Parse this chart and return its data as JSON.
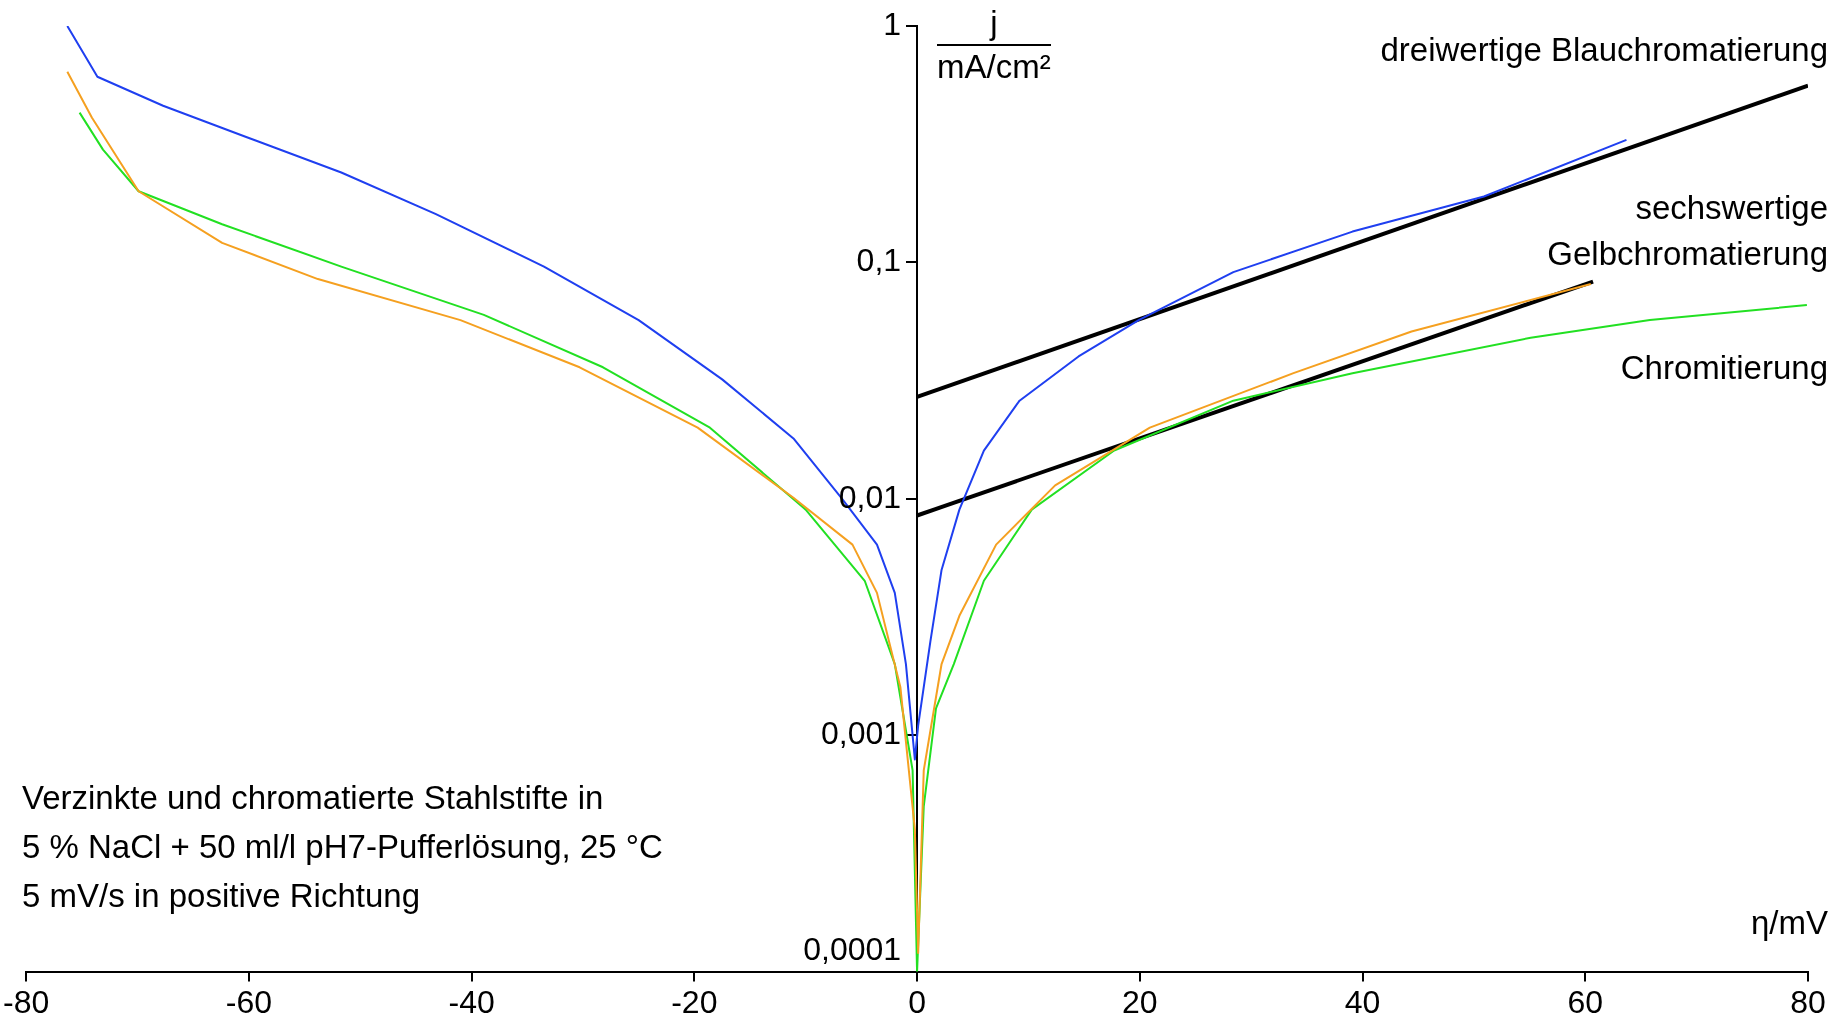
{
  "chart_data": {
    "type": "line",
    "xlabel": "η/mV",
    "ylabel": "j\nmA/cm²",
    "annotations": [
      "Verzinkte und chromatierte Stahlstifte in",
      "5 % NaCl + 50 ml/l pH7-Pufferlösung, 25 °C",
      "5 mV/s in positive Richtung"
    ],
    "series": [
      {
        "name": "dreiwertige Blauchromatierung",
        "color": "#1f3ff0",
        "x": [
          -76.3,
          -73.6,
          -67.7,
          -60.3,
          -51.7,
          -43.2,
          -33.5,
          -25,
          -17.5,
          -11.1,
          -6.8,
          -3.6,
          -2.0,
          -1.0,
          -0.2,
          0.1,
          1.2,
          2.2,
          3.8,
          6.0,
          9.2,
          14.5,
          19.9,
          28.4,
          39.1,
          50.9,
          63.7
        ],
        "values": [
          1.0,
          0.61,
          0.46,
          0.34,
          0.24,
          0.16,
          0.096,
          0.057,
          0.032,
          0.018,
          0.0101,
          0.0064,
          0.004,
          0.002,
          0.00079,
          0.0011,
          0.0025,
          0.005,
          0.009,
          0.016,
          0.026,
          0.04,
          0.057,
          0.091,
          0.135,
          0.19,
          0.33
        ]
      },
      {
        "name": "sechswertige Gelbchromatierung",
        "color": "#f5a020",
        "x": [
          -76.3,
          -74.1,
          -69.9,
          -62.4,
          -53.8,
          -41,
          -30.3,
          -19.7,
          -11.1,
          -5.8,
          -3.6,
          -1.5,
          -0.2,
          0.1,
          0.6,
          2.2,
          3.8,
          7.1,
          12.4,
          20.9,
          33.8,
          44.4,
          60.5
        ],
        "values": [
          0.64,
          0.41,
          0.2,
          0.121,
          0.085,
          0.057,
          0.036,
          0.02,
          0.0101,
          0.0064,
          0.004,
          0.0016,
          0.0004,
          0.00012,
          0.00071,
          0.002,
          0.0032,
          0.0064,
          0.0114,
          0.02,
          0.034,
          0.051,
          0.081
        ]
      },
      {
        "name": "Chromitierung",
        "color": "#22e022",
        "x": [
          -75.2,
          -73.1,
          -69.9,
          -62.4,
          -51.7,
          -38.9,
          -28.2,
          -18.6,
          -10.0,
          -4.7,
          -2.0,
          -0.4,
          0.0,
          0.6,
          1.7,
          3.3,
          6.0,
          10.3,
          17.7,
          28.4,
          39.1,
          55.1,
          65.8,
          79.9
        ],
        "values": [
          0.43,
          0.3,
          0.2,
          0.145,
          0.096,
          0.06,
          0.036,
          0.02,
          0.009,
          0.0045,
          0.002,
          0.00071,
          0.0001,
          0.0005,
          0.0013,
          0.002,
          0.0045,
          0.009,
          0.016,
          0.026,
          0.034,
          0.048,
          0.057,
          0.066
        ]
      },
      {
        "color": "#000000",
        "x": [
          0,
          80
        ],
        "values": [
          0.027,
          0.56
        ]
      },
      {
        "color": "#000000",
        "x": [
          0,
          60.7
        ],
        "values": [
          0.0085,
          0.083
        ]
      }
    ],
    "xlim": [
      -80,
      80
    ],
    "xticks": [
      -80,
      -60,
      -40,
      -20,
      0,
      20,
      40,
      60,
      80
    ],
    "ylim": [
      0.0001,
      1
    ],
    "yticks": [
      {
        "value": 0.0001,
        "label": "0,0001"
      },
      {
        "value": 0.001,
        "label": "0,001"
      },
      {
        "value": 0.01,
        "label": "0,01"
      },
      {
        "value": 0.1,
        "label": "0,1"
      },
      {
        "value": 1,
        "label": "1"
      }
    ],
    "log": true,
    "grid": false,
    "legend": false
  }
}
